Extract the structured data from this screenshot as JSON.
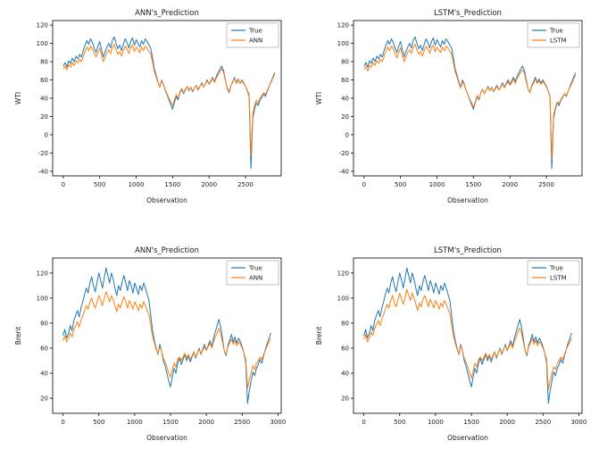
{
  "colors": {
    "true_series": "#1f77b4",
    "pred_series": "#ff7f0e",
    "background": "#ffffff",
    "spine": "#000000",
    "legend_border": "#b3b3b3"
  },
  "series_values": {
    "wti_true": [
      75,
      79,
      74,
      81,
      78,
      84,
      80,
      86,
      83,
      88,
      85,
      92,
      98,
      103,
      99,
      105,
      101,
      95,
      90,
      97,
      102,
      93,
      85,
      91,
      96,
      100,
      95,
      104,
      107,
      100,
      94,
      98,
      92,
      99,
      105,
      101,
      95,
      102,
      106,
      98,
      104,
      100,
      96,
      103,
      99,
      105,
      102,
      98,
      95,
      84,
      72,
      65,
      58,
      52,
      60,
      55,
      48,
      44,
      38,
      33,
      28,
      35,
      42,
      38,
      46,
      50,
      45,
      49,
      53,
      48,
      52,
      47,
      51,
      54,
      49,
      53,
      57,
      52,
      56,
      60,
      55,
      59,
      63,
      58,
      64,
      68,
      72,
      75,
      70,
      60,
      50,
      46,
      54,
      58,
      63,
      57,
      61,
      56,
      60,
      57,
      53,
      48,
      42,
      -37,
      18,
      28,
      35,
      32,
      38,
      41,
      45,
      42,
      48,
      53,
      58,
      63,
      68
    ],
    "wti_ann": [
      72,
      75,
      71,
      77,
      74,
      79,
      76,
      81,
      79,
      83,
      80,
      86,
      91,
      96,
      92,
      97,
      94,
      89,
      85,
      90,
      95,
      87,
      80,
      85,
      90,
      93,
      89,
      96,
      99,
      93,
      88,
      91,
      86,
      92,
      97,
      94,
      89,
      95,
      98,
      91,
      96,
      93,
      90,
      96,
      92,
      97,
      95,
      91,
      89,
      79,
      69,
      63,
      57,
      52,
      59,
      55,
      49,
      45,
      40,
      36,
      32,
      38,
      44,
      40,
      47,
      51,
      46,
      50,
      53,
      49,
      52,
      48,
      51,
      54,
      50,
      53,
      56,
      52,
      56,
      59,
      55,
      58,
      62,
      57,
      62,
      66,
      69,
      72,
      68,
      59,
      51,
      47,
      54,
      57,
      62,
      56,
      60,
      56,
      59,
      56,
      53,
      49,
      44,
      -23,
      23,
      32,
      38,
      35,
      40,
      43,
      46,
      44,
      49,
      53,
      57,
      62,
      66
    ],
    "wti_lstm": [
      71,
      75,
      70,
      76,
      74,
      79,
      76,
      81,
      78,
      83,
      80,
      86,
      91,
      96,
      92,
      97,
      94,
      89,
      84,
      90,
      95,
      87,
      80,
      85,
      90,
      93,
      89,
      96,
      99,
      93,
      88,
      91,
      86,
      92,
      97,
      94,
      89,
      95,
      98,
      91,
      96,
      93,
      90,
      96,
      92,
      97,
      95,
      91,
      89,
      79,
      69,
      63,
      56,
      51,
      58,
      54,
      48,
      44,
      39,
      35,
      30,
      36,
      43,
      39,
      46,
      50,
      45,
      49,
      52,
      48,
      51,
      47,
      50,
      53,
      49,
      52,
      56,
      51,
      55,
      58,
      54,
      57,
      61,
      56,
      62,
      65,
      69,
      71,
      67,
      58,
      50,
      46,
      53,
      56,
      61,
      56,
      59,
      55,
      58,
      56,
      52,
      48,
      43,
      -26,
      22,
      30,
      36,
      34,
      39,
      42,
      45,
      43,
      48,
      52,
      56,
      61,
      65
    ],
    "brent_true": [
      70,
      75,
      68,
      72,
      78,
      74,
      82,
      86,
      90,
      85,
      92,
      97,
      103,
      108,
      104,
      112,
      117,
      110,
      105,
      113,
      120,
      114,
      108,
      116,
      124,
      118,
      112,
      120,
      115,
      108,
      102,
      110,
      106,
      113,
      118,
      112,
      106,
      114,
      110,
      104,
      112,
      108,
      103,
      110,
      106,
      112,
      108,
      103,
      98,
      86,
      74,
      66,
      60,
      55,
      63,
      58,
      50,
      46,
      40,
      34,
      29,
      37,
      44,
      40,
      48,
      52,
      47,
      51,
      55,
      50,
      54,
      49,
      53,
      57,
      52,
      56,
      60,
      55,
      59,
      63,
      58,
      62,
      66,
      61,
      68,
      73,
      78,
      83,
      77,
      68,
      58,
      54,
      62,
      66,
      71,
      65,
      69,
      64,
      68,
      65,
      61,
      56,
      48,
      16,
      26,
      34,
      41,
      38,
      44,
      47,
      51,
      48,
      54,
      59,
      64,
      68,
      72
    ],
    "brent_ann": [
      66,
      70,
      65,
      68,
      72,
      69,
      75,
      78,
      81,
      77,
      82,
      86,
      90,
      94,
      91,
      97,
      100,
      95,
      92,
      97,
      102,
      98,
      94,
      100,
      105,
      101,
      97,
      102,
      99,
      94,
      89,
      95,
      92,
      97,
      101,
      97,
      92,
      98,
      95,
      91,
      97,
      94,
      90,
      95,
      92,
      97,
      94,
      90,
      87,
      78,
      69,
      64,
      59,
      56,
      61,
      58,
      52,
      49,
      45,
      40,
      37,
      43,
      48,
      45,
      51,
      53,
      50,
      53,
      56,
      52,
      55,
      51,
      54,
      57,
      53,
      56,
      59,
      56,
      58,
      61,
      58,
      61,
      64,
      60,
      65,
      69,
      72,
      76,
      71,
      65,
      58,
      55,
      61,
      64,
      67,
      63,
      66,
      62,
      65,
      63,
      60,
      56,
      51,
      28,
      35,
      40,
      46,
      43,
      48,
      50,
      53,
      51,
      55,
      58,
      62,
      65,
      68
    ],
    "brent_lstm": [
      67,
      71,
      65,
      68,
      73,
      70,
      76,
      79,
      82,
      78,
      83,
      87,
      91,
      95,
      92,
      98,
      102,
      96,
      93,
      99,
      104,
      99,
      95,
      101,
      107,
      102,
      98,
      104,
      100,
      95,
      90,
      96,
      93,
      99,
      102,
      98,
      93,
      99,
      96,
      92,
      98,
      95,
      91,
      96,
      93,
      98,
      95,
      91,
      88,
      79,
      70,
      64,
      59,
      56,
      62,
      58,
      52,
      49,
      45,
      40,
      36,
      42,
      48,
      45,
      51,
      53,
      50,
      53,
      56,
      52,
      55,
      51,
      54,
      57,
      53,
      56,
      59,
      56,
      59,
      62,
      58,
      61,
      64,
      60,
      65,
      69,
      73,
      76,
      72,
      65,
      58,
      55,
      61,
      64,
      68,
      63,
      66,
      62,
      65,
      63,
      60,
      56,
      51,
      27,
      34,
      40,
      45,
      43,
      48,
      50,
      53,
      51,
      55,
      59,
      62,
      65,
      68
    ]
  },
  "chart_data": [
    {
      "id": "ann-wti",
      "type": "line",
      "title": "ANN's_Prediction",
      "xlabel": "Observation",
      "ylabel": "WTI",
      "x_start": 0,
      "x_step": 25,
      "xlim": [
        -145,
        2990
      ],
      "ylim": [
        -45,
        125
      ],
      "xticks": [
        0,
        500,
        1000,
        1500,
        2000,
        2500
      ],
      "yticks": [
        -40,
        -20,
        0,
        20,
        40,
        60,
        80,
        100,
        120
      ],
      "grid": false,
      "legend_position": "upper-right",
      "series": [
        {
          "name": "True",
          "color_key": "true_series",
          "values_key": "wti_true"
        },
        {
          "name": "ANN",
          "color_key": "pred_series",
          "values_key": "wti_ann"
        }
      ]
    },
    {
      "id": "lstm-wti",
      "type": "line",
      "title": "LSTM's_Prediction",
      "xlabel": "Observation",
      "ylabel": "WTI",
      "x_start": 0,
      "x_step": 25,
      "xlim": [
        -145,
        2990
      ],
      "ylim": [
        -45,
        125
      ],
      "xticks": [
        0,
        500,
        1000,
        1500,
        2000,
        2500
      ],
      "yticks": [
        -40,
        -20,
        0,
        20,
        40,
        60,
        80,
        100,
        120
      ],
      "grid": false,
      "legend_position": "upper-right",
      "series": [
        {
          "name": "True",
          "color_key": "true_series",
          "values_key": "wti_true"
        },
        {
          "name": "LSTM",
          "color_key": "pred_series",
          "values_key": "wti_lstm"
        }
      ]
    },
    {
      "id": "ann-brent",
      "type": "line",
      "title": "ANN's_Prediction",
      "xlabel": "Observation",
      "ylabel": "Brent",
      "x_start": 0,
      "x_step": 25,
      "xlim": [
        -145,
        3045
      ],
      "ylim": [
        8,
        132
      ],
      "xticks": [
        0,
        500,
        1000,
        1500,
        2000,
        2500,
        3000
      ],
      "yticks": [
        20,
        40,
        60,
        80,
        100,
        120
      ],
      "grid": false,
      "legend_position": "upper-right",
      "series": [
        {
          "name": "True",
          "color_key": "true_series",
          "values_key": "brent_true"
        },
        {
          "name": "ANN",
          "color_key": "pred_series",
          "values_key": "brent_ann"
        }
      ]
    },
    {
      "id": "lstm-brent",
      "type": "line",
      "title": "LSTM's_Prediction",
      "xlabel": "Observation",
      "ylabel": "Brent",
      "x_start": 0,
      "x_step": 25,
      "xlim": [
        -145,
        3045
      ],
      "ylim": [
        8,
        132
      ],
      "xticks": [
        0,
        500,
        1000,
        1500,
        2000,
        2500,
        3000
      ],
      "yticks": [
        20,
        40,
        60,
        80,
        100,
        120
      ],
      "grid": false,
      "legend_position": "upper-right",
      "series": [
        {
          "name": "True",
          "color_key": "true_series",
          "values_key": "brent_true"
        },
        {
          "name": "LSTM",
          "color_key": "pred_series",
          "values_key": "brent_lstm"
        }
      ]
    }
  ]
}
